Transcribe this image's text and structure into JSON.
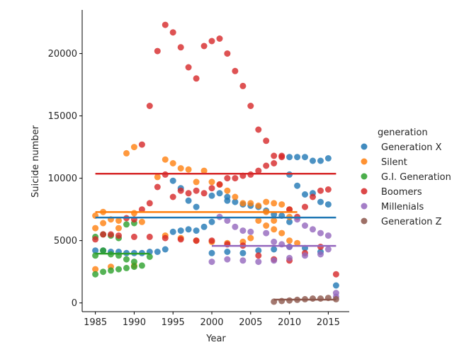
{
  "chart_data": {
    "type": "scatter",
    "title": "",
    "xlabel": "Year",
    "ylabel": "Suicide number",
    "xlim": [
      1983.3,
      2017.7
    ],
    "ylim": [
      -700,
      23500
    ],
    "xticks": [
      1985,
      1990,
      1995,
      2000,
      2005,
      2010,
      2015
    ],
    "yticks": [
      0,
      5000,
      10000,
      15000,
      20000
    ],
    "grid": false,
    "legend_placement": "right",
    "legend_title": "generation",
    "series": [
      {
        "name": "Generation X",
        "color": "#1f77b4",
        "points": [
          [
            1985,
            4200
          ],
          [
            1986,
            4200
          ],
          [
            1987,
            4100
          ],
          [
            1988,
            4100
          ],
          [
            1989,
            4000
          ],
          [
            1990,
            4000
          ],
          [
            1991,
            4000
          ],
          [
            1992,
            4100
          ],
          [
            1993,
            4100
          ],
          [
            1994,
            4300
          ],
          [
            1995,
            5700
          ],
          [
            1995,
            9800
          ],
          [
            1996,
            5800
          ],
          [
            1996,
            9200
          ],
          [
            1997,
            5900
          ],
          [
            1997,
            8200
          ],
          [
            1998,
            7700
          ],
          [
            1998,
            5800
          ],
          [
            1999,
            6100
          ],
          [
            2000,
            6500
          ],
          [
            2000,
            8600
          ],
          [
            2001,
            8800
          ],
          [
            2002,
            8500
          ],
          [
            2002,
            8200
          ],
          [
            2003,
            8100
          ],
          [
            2004,
            7900
          ],
          [
            2005,
            7800
          ],
          [
            2006,
            7700
          ],
          [
            2007,
            7400
          ],
          [
            2008,
            7100
          ],
          [
            2009,
            7000
          ],
          [
            2010,
            6500
          ],
          [
            2010,
            11700
          ],
          [
            2010,
            10300
          ],
          [
            2011,
            9400
          ],
          [
            2011,
            11700
          ],
          [
            2012,
            11700
          ],
          [
            2012,
            8700
          ],
          [
            2013,
            11400
          ],
          [
            2013,
            8800
          ],
          [
            2014,
            11400
          ],
          [
            2014,
            8100
          ],
          [
            2015,
            11600
          ],
          [
            2015,
            7900
          ],
          [
            2016,
            1400
          ],
          [
            2000,
            4000
          ],
          [
            2002,
            4100
          ],
          [
            2004,
            4000
          ],
          [
            2006,
            4200
          ],
          [
            2008,
            4300
          ],
          [
            2010,
            4500
          ],
          [
            2012,
            4400
          ],
          [
            2014,
            4100
          ]
        ]
      },
      {
        "name": "Silent",
        "color": "#ff7f0e",
        "points": [
          [
            1985,
            7000
          ],
          [
            1985,
            6000
          ],
          [
            1986,
            7300
          ],
          [
            1986,
            6400
          ],
          [
            1987,
            6700
          ],
          [
            1988,
            6600
          ],
          [
            1988,
            6000
          ],
          [
            1989,
            12000
          ],
          [
            1990,
            12500
          ],
          [
            1990,
            7200
          ],
          [
            1991,
            6500
          ],
          [
            1993,
            10100
          ],
          [
            1994,
            11500
          ],
          [
            1995,
            11200
          ],
          [
            1996,
            10800
          ],
          [
            1997,
            10700
          ],
          [
            1998,
            9700
          ],
          [
            1999,
            10600
          ],
          [
            2000,
            9700
          ],
          [
            2001,
            9500
          ],
          [
            2002,
            9000
          ],
          [
            2003,
            8500
          ],
          [
            2004,
            8000
          ],
          [
            2005,
            8000
          ],
          [
            2006,
            7800
          ],
          [
            2007,
            7300
          ],
          [
            2007,
            8100
          ],
          [
            2008,
            8000
          ],
          [
            2008,
            6600
          ],
          [
            2009,
            7900
          ],
          [
            2010,
            7500
          ],
          [
            2010,
            6900
          ],
          [
            1994,
            5400
          ],
          [
            1996,
            5200
          ],
          [
            1998,
            5000
          ],
          [
            2000,
            4900
          ],
          [
            2002,
            4800
          ],
          [
            2004,
            4900
          ],
          [
            2005,
            5200
          ],
          [
            2006,
            6600
          ],
          [
            2007,
            6200
          ],
          [
            2008,
            5900
          ],
          [
            2009,
            5600
          ],
          [
            2010,
            5000
          ],
          [
            2011,
            4800
          ],
          [
            1985,
            2700
          ],
          [
            1987,
            2900
          ],
          [
            1990,
            3000
          ]
        ]
      },
      {
        "name": "G.I. Generation",
        "color": "#2ca02c",
        "points": [
          [
            1985,
            5300
          ],
          [
            1985,
            3800
          ],
          [
            1986,
            5500
          ],
          [
            1986,
            4200
          ],
          [
            1987,
            5400
          ],
          [
            1987,
            3900
          ],
          [
            1988,
            5200
          ],
          [
            1988,
            3800
          ],
          [
            1989,
            6300
          ],
          [
            1989,
            3500
          ],
          [
            1990,
            6400
          ],
          [
            1990,
            3300
          ],
          [
            1991,
            3000
          ],
          [
            1992,
            3700
          ],
          [
            1985,
            2300
          ],
          [
            1986,
            2500
          ],
          [
            1987,
            2600
          ],
          [
            1988,
            2700
          ],
          [
            1989,
            2800
          ],
          [
            1990,
            2900
          ]
        ]
      },
      {
        "name": "Boomers",
        "color": "#d62728",
        "points": [
          [
            1985,
            5100
          ],
          [
            1986,
            5500
          ],
          [
            1987,
            5500
          ],
          [
            1988,
            5400
          ],
          [
            1989,
            6800
          ],
          [
            1990,
            6700
          ],
          [
            1991,
            7500
          ],
          [
            1991,
            12700
          ],
          [
            1992,
            15800
          ],
          [
            1992,
            8000
          ],
          [
            1993,
            20200
          ],
          [
            1993,
            9300
          ],
          [
            1994,
            22300
          ],
          [
            1994,
            10300
          ],
          [
            1995,
            21700
          ],
          [
            1995,
            8500
          ],
          [
            1996,
            20500
          ],
          [
            1996,
            9000
          ],
          [
            1997,
            18900
          ],
          [
            1997,
            8800
          ],
          [
            1998,
            18000
          ],
          [
            1998,
            9000
          ],
          [
            1999,
            20600
          ],
          [
            1999,
            8800
          ],
          [
            2000,
            21000
          ],
          [
            2000,
            9200
          ],
          [
            2001,
            21200
          ],
          [
            2001,
            9500
          ],
          [
            2002,
            20000
          ],
          [
            2002,
            10000
          ],
          [
            2003,
            18600
          ],
          [
            2003,
            10000
          ],
          [
            2004,
            17400
          ],
          [
            2004,
            10200
          ],
          [
            2005,
            15800
          ],
          [
            2005,
            10300
          ],
          [
            2006,
            13900
          ],
          [
            2006,
            10600
          ],
          [
            2007,
            13000
          ],
          [
            2007,
            11000
          ],
          [
            2008,
            11800
          ],
          [
            2008,
            11200
          ],
          [
            2009,
            11700
          ],
          [
            2009,
            11800
          ],
          [
            2010,
            7500
          ],
          [
            2011,
            6900
          ],
          [
            2012,
            7700
          ],
          [
            2013,
            8500
          ],
          [
            2014,
            9000
          ],
          [
            2015,
            9100
          ],
          [
            1990,
            5300
          ],
          [
            1992,
            5300
          ],
          [
            1994,
            5200
          ],
          [
            1996,
            5100
          ],
          [
            1998,
            5000
          ],
          [
            2000,
            5000
          ],
          [
            2002,
            4700
          ],
          [
            2004,
            4600
          ],
          [
            2006,
            3800
          ],
          [
            2008,
            3500
          ],
          [
            2010,
            3400
          ],
          [
            2012,
            4000
          ],
          [
            2014,
            4500
          ],
          [
            2016,
            2300
          ]
        ]
      },
      {
        "name": "Millenials",
        "color": "#9467bd",
        "points": [
          [
            2001,
            6900
          ],
          [
            2002,
            6600
          ],
          [
            2003,
            6100
          ],
          [
            2004,
            5800
          ],
          [
            2005,
            5700
          ],
          [
            2007,
            5600
          ],
          [
            2008,
            4900
          ],
          [
            2009,
            4700
          ],
          [
            2010,
            4500
          ],
          [
            2011,
            6700
          ],
          [
            2012,
            6200
          ],
          [
            2013,
            5900
          ],
          [
            2014,
            5600
          ],
          [
            2015,
            5400
          ],
          [
            2016,
            500
          ],
          [
            2000,
            3300
          ],
          [
            2002,
            3500
          ],
          [
            2004,
            3400
          ],
          [
            2006,
            3300
          ],
          [
            2008,
            3400
          ],
          [
            2010,
            3600
          ],
          [
            2012,
            3800
          ],
          [
            2014,
            3900
          ],
          [
            2015,
            4300
          ],
          [
            2016,
            800
          ]
        ]
      },
      {
        "name": "Generation Z",
        "color": "#8c564b",
        "points": [
          [
            2008,
            100
          ],
          [
            2009,
            150
          ],
          [
            2010,
            200
          ],
          [
            2011,
            250
          ],
          [
            2012,
            300
          ],
          [
            2013,
            350
          ],
          [
            2014,
            350
          ],
          [
            2015,
            400
          ],
          [
            2016,
            300
          ]
        ]
      }
    ]
  }
}
